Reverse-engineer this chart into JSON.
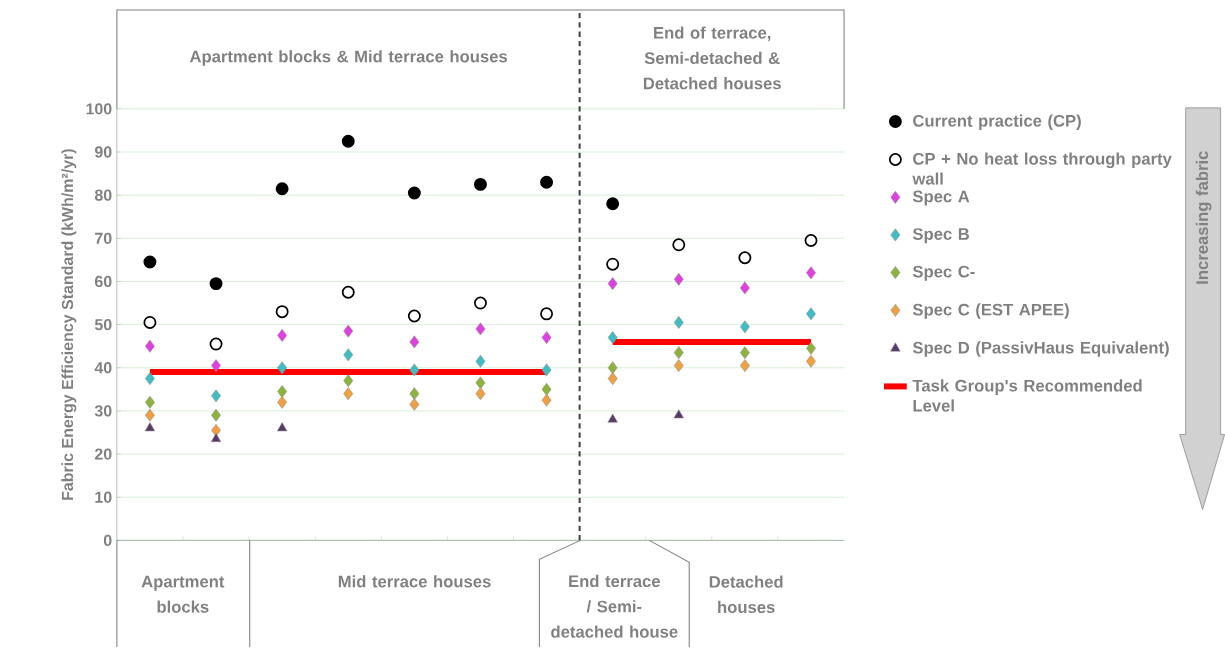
{
  "chart_data": {
    "type": "scatter",
    "ylabel": "Fabric Energy Efficiency Standard (kWh/m²/yr)",
    "categories": [
      null,
      null,
      null,
      null,
      null,
      null,
      null,
      null,
      null,
      null,
      null
    ],
    "ylim": [
      0,
      100
    ],
    "yticks": [
      0,
      10,
      20,
      30,
      40,
      50,
      60,
      70,
      80,
      90,
      100
    ],
    "grid": "y",
    "legend": "right",
    "series": [
      {
        "name": "Current practice (CP)",
        "color": "#000000",
        "marker": "circle",
        "values": [
          64.5,
          59.5,
          81.5,
          92.5,
          80.5,
          82.5,
          83,
          78,
          null,
          null,
          null
        ]
      },
      {
        "name": "CP + No heat loss through party wall",
        "color": "#ffffff",
        "marker": "circle",
        "values": [
          50.5,
          45.5,
          53,
          57.5,
          52,
          55,
          52.5,
          64,
          68.5,
          65.5,
          69.5
        ]
      },
      {
        "name": "Spec A",
        "color": "#e040e0",
        "marker": "diamond",
        "values": [
          45,
          40.5,
          47.5,
          48.5,
          46,
          49,
          47,
          59.5,
          60.5,
          58.5,
          62
        ]
      },
      {
        "name": "Spec B",
        "color": "#40bcc4",
        "marker": "diamond",
        "values": [
          37.5,
          33.5,
          40,
          43,
          39.5,
          41.5,
          39.5,
          47,
          50.5,
          49.5,
          52.5
        ]
      },
      {
        "name": "Spec C-",
        "color": "#8cb43c",
        "marker": "diamond",
        "values": [
          32,
          29,
          34.5,
          37,
          34,
          36.5,
          35,
          40,
          43.5,
          43.5,
          44.5
        ]
      },
      {
        "name": "Spec C (EST APEE)",
        "color": "#f0a040",
        "marker": "diamond",
        "values": [
          29,
          25.5,
          32,
          34,
          31.5,
          34,
          32.5,
          37.5,
          40.5,
          40.5,
          41.5
        ]
      },
      {
        "name": "Spec D (PassivHaus Equivalent)",
        "color": "#5a3a6a",
        "marker": "triangle",
        "values": [
          26,
          23.5,
          26,
          null,
          null,
          null,
          null,
          28,
          29,
          null,
          null
        ]
      },
      {
        "name": "Task Group's Recommended Level",
        "type": "line",
        "color": "#ff0000",
        "marker": "none",
        "values": [
          39,
          39,
          39,
          39,
          39,
          39,
          39,
          null,
          null,
          null,
          null
        ]
      },
      {
        "type": "line",
        "color": "#ff0000",
        "marker": "none",
        "values": [
          null,
          null,
          null,
          null,
          null,
          null,
          null,
          46,
          46,
          46,
          46
        ]
      }
    ],
    "annotations": [
      "Apartment blocks & Mid terrace houses",
      "End of terrace, Semi-detached & Detached houses",
      "Apartment blocks",
      "Mid terrace houses",
      "End terrace / Semi-detached house",
      "Detached houses",
      "Increasing fabric"
    ]
  }
}
